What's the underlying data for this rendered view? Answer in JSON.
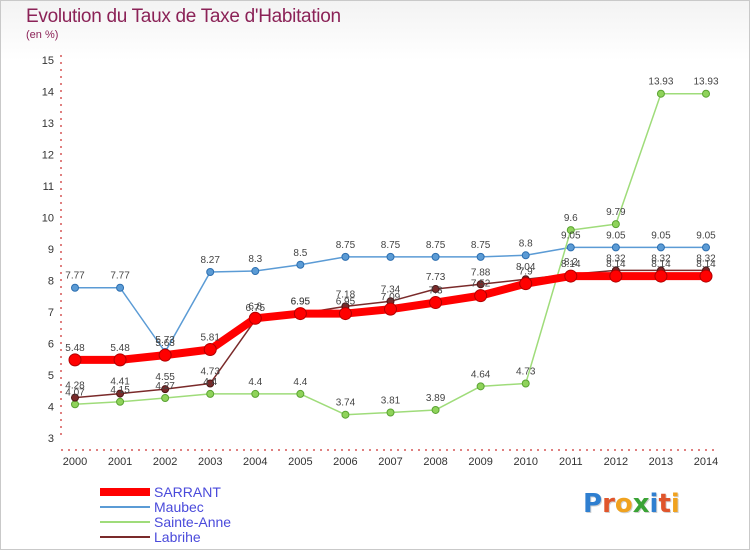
{
  "title": "Evolution du Taux de Taxe d'Habitation",
  "subtitle": "(en %)",
  "logo": {
    "text": "Proxiti",
    "letters": [
      {
        "ch": "P",
        "color": "#2f7fd0"
      },
      {
        "ch": "r",
        "color": "#e0552b"
      },
      {
        "ch": "o",
        "color": "#f0a21f"
      },
      {
        "ch": "x",
        "color": "#3aa335"
      },
      {
        "ch": "i",
        "color": "#2f7fd0"
      },
      {
        "ch": "t",
        "color": "#e0552b"
      },
      {
        "ch": "i",
        "color": "#f0a21f"
      }
    ]
  },
  "chart_data": {
    "type": "line",
    "title": "Evolution du Taux de Taxe d'Habitation",
    "ylabel": "(en %)",
    "xlabel": "",
    "ylim": [
      3,
      15
    ],
    "yticks": [
      3,
      4,
      5,
      6,
      7,
      8,
      9,
      10,
      11,
      12,
      13,
      14,
      15
    ],
    "x": [
      "2000",
      "2001",
      "2002",
      "2003",
      "2004",
      "2005",
      "2006",
      "2007",
      "2008",
      "2009",
      "2010",
      "2011",
      "2012",
      "2013",
      "2014"
    ],
    "grid": false,
    "legend_position": "bottom-left",
    "series": [
      {
        "name": "Maubec",
        "color": "#5b9bd5",
        "values": [
          7.77,
          7.77,
          5.73,
          8.27,
          8.3,
          8.5,
          8.75,
          8.75,
          8.75,
          8.75,
          8.8,
          9.05,
          9.05,
          9.05,
          9.05
        ],
        "labels": [
          "7.77",
          "7.77",
          "5.73",
          "8.27",
          "8.3",
          "8.5",
          "8.75",
          "8.75",
          "8.75",
          "8.75",
          "8.8",
          "9.05",
          "9.05",
          "9.05",
          "9.05"
        ]
      },
      {
        "name": "Sainte-Anne",
        "color": "#9fdc7a",
        "values": [
          4.07,
          4.15,
          4.27,
          4.4,
          4.4,
          4.4,
          3.74,
          3.81,
          3.89,
          4.64,
          4.73,
          9.6,
          9.79,
          13.93,
          13.93
        ],
        "labels": [
          "4.07",
          "4.15",
          "4.27",
          "4.4",
          "4.4",
          "4.4",
          "3.74",
          "3.81",
          "3.89",
          "4.64",
          "4.73",
          "9.6",
          "9.79",
          "13.93",
          "13.93"
        ]
      },
      {
        "name": "Labrihe",
        "color": "#7a2a2a",
        "values": [
          4.28,
          4.41,
          4.55,
          4.73,
          6.75,
          6.95,
          7.18,
          7.34,
          7.73,
          7.88,
          8.04,
          8.2,
          8.32,
          8.32,
          8.32
        ],
        "labels": [
          "4.28",
          "4.41",
          "4.55",
          "4.73",
          "6.75",
          "6.95",
          "7.18",
          "7.34",
          "7.73",
          "7.88",
          "8.04",
          "8.2",
          "8.32",
          "8.32",
          "8.32"
        ]
      },
      {
        "name": "SARRANT",
        "color": "#ff0000",
        "values": [
          5.48,
          5.48,
          5.63,
          5.81,
          6.8,
          6.95,
          6.95,
          7.09,
          7.3,
          7.52,
          7.9,
          8.14,
          8.14,
          8.14,
          8.14
        ],
        "labels": [
          "5.48",
          "5.48",
          "5.63",
          "5.81",
          "6.8",
          "6.95",
          "6.95",
          "7.09",
          "7.3",
          "7.52",
          "7.9",
          "8.14",
          "8.14",
          "8.14",
          "8.14"
        ]
      }
    ],
    "legend": [
      "SARRANT",
      "Maubec",
      "Sainte-Anne",
      "Labrihe"
    ]
  }
}
